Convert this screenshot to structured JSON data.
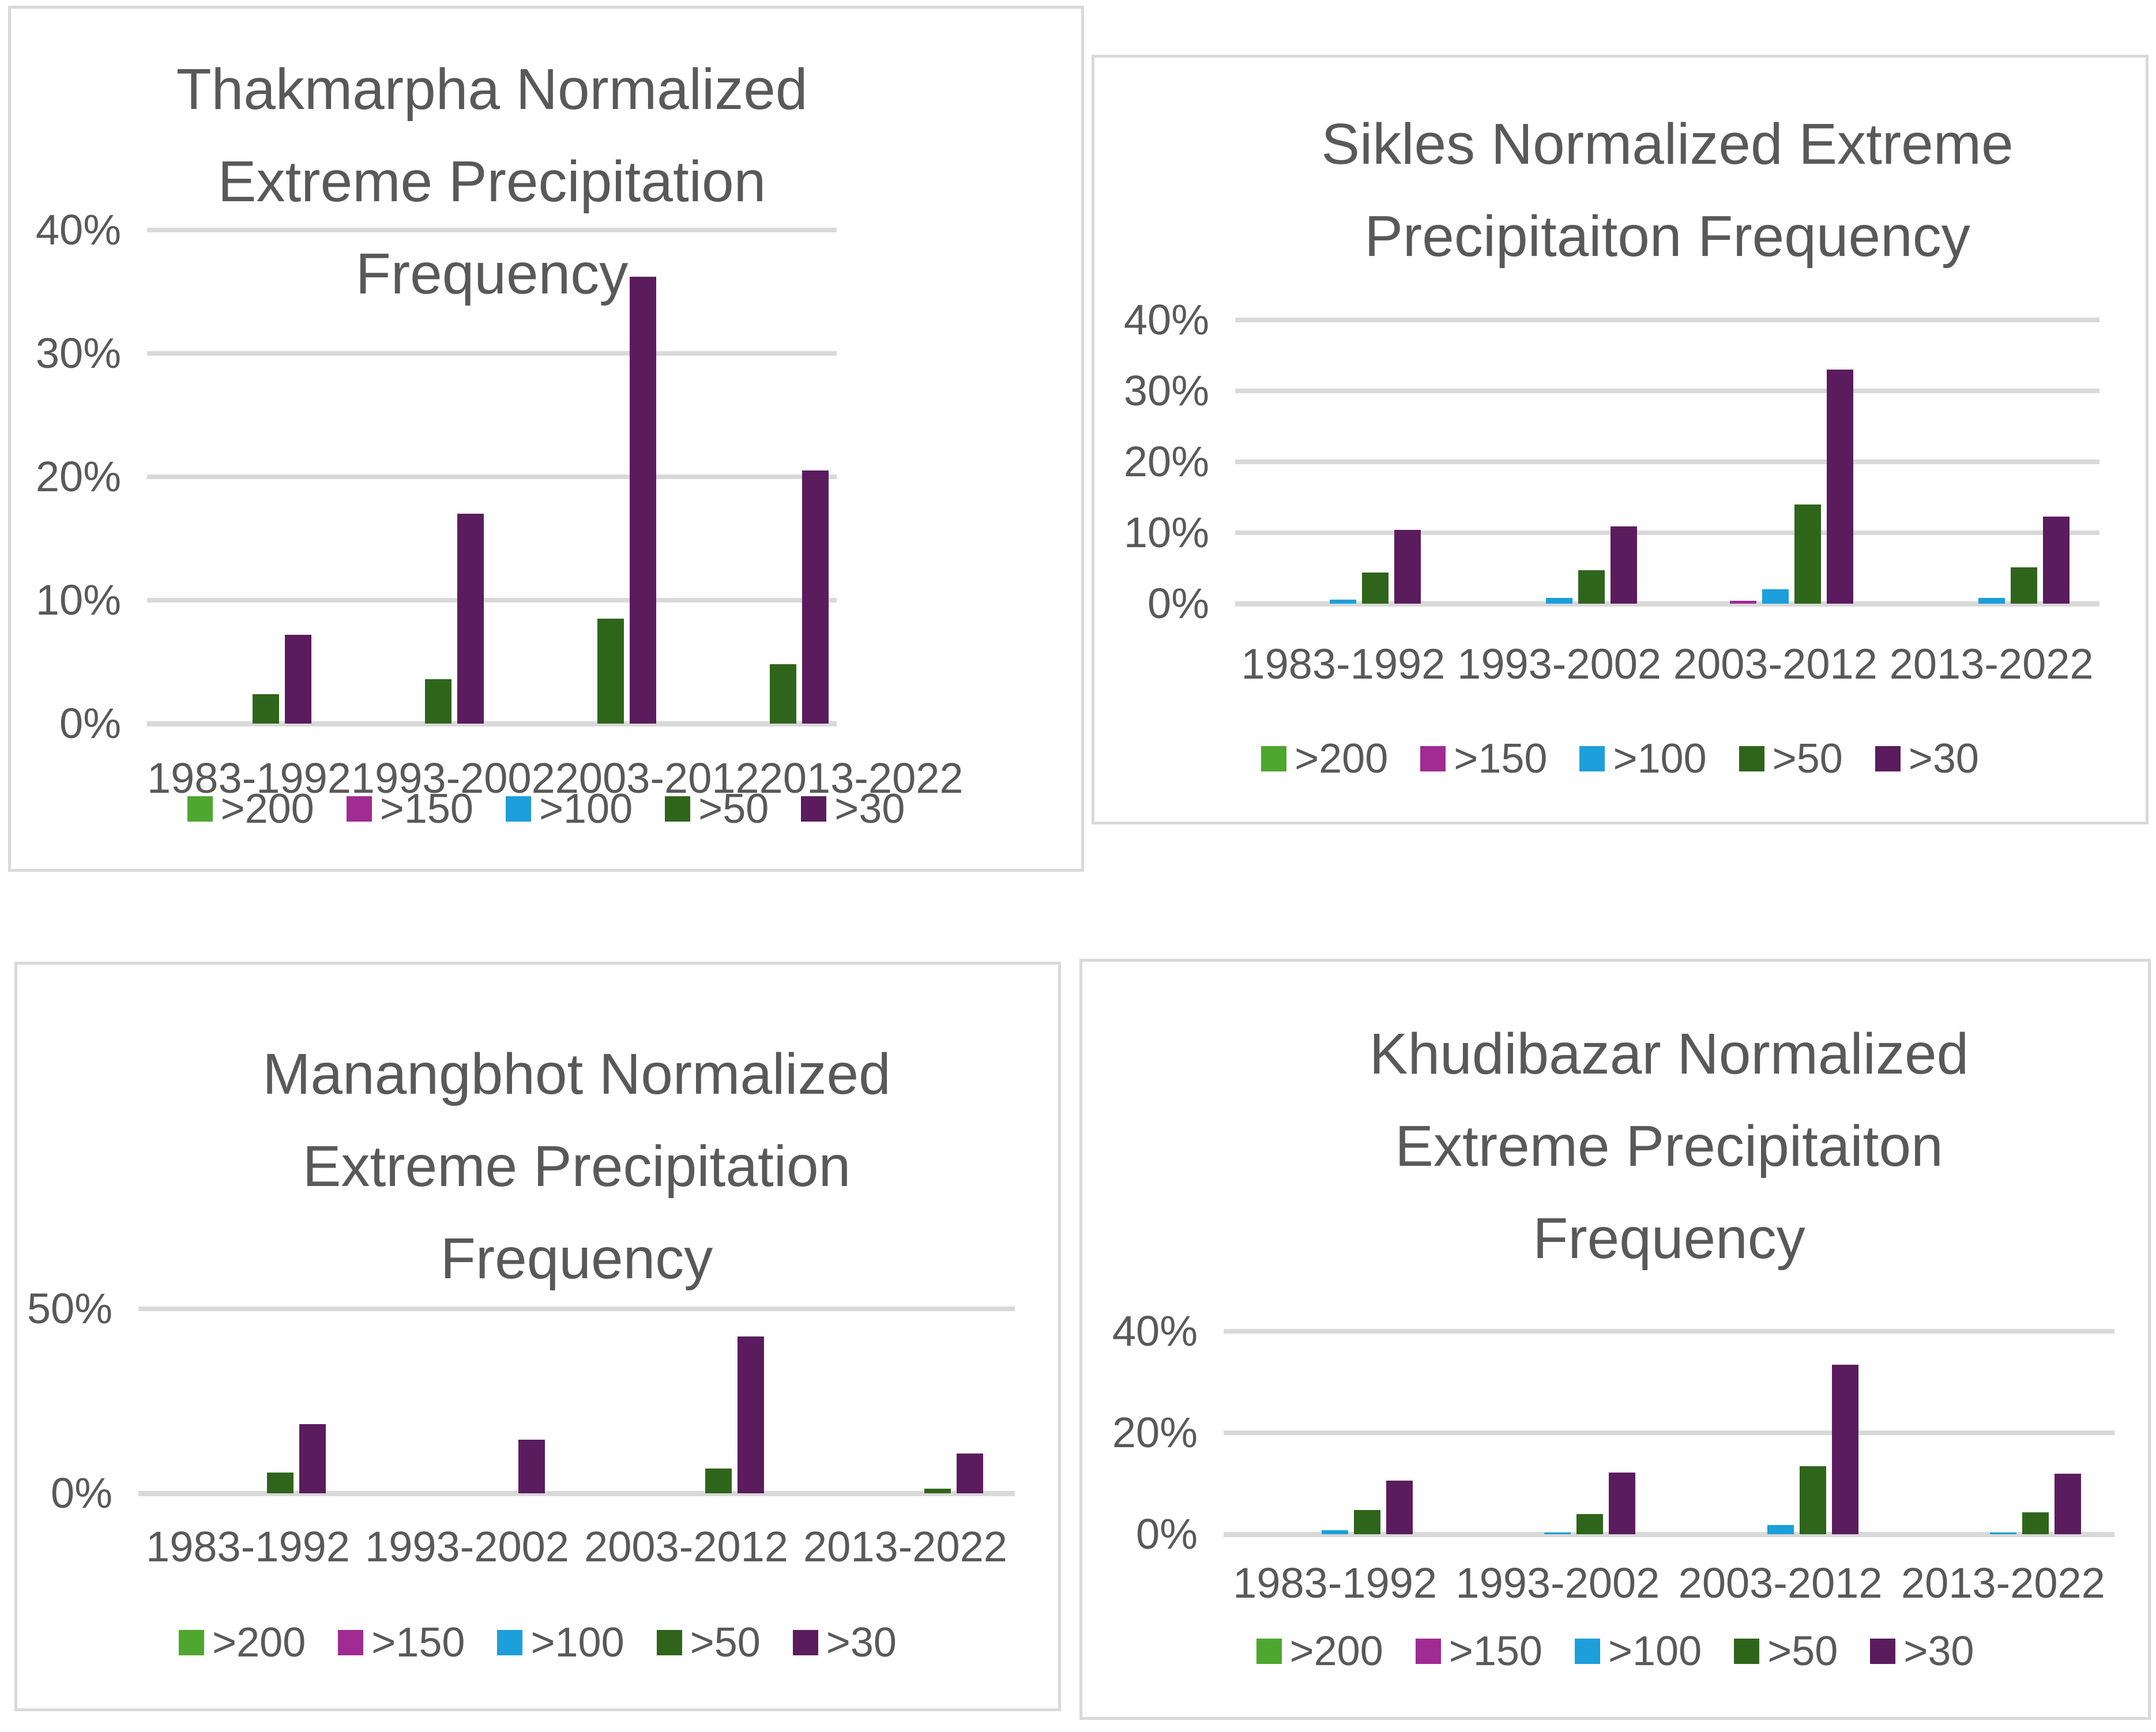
{
  "page": {
    "background": "#FFFFFF",
    "panel_border_color": "#D9D9D9",
    "gridline_color": "#D9D9D9",
    "text_color": "#595959"
  },
  "categories": [
    "1983-1992",
    "1993-2002",
    "2003-2012",
    "2013-2022"
  ],
  "legend": {
    "position": "bottom",
    "items": [
      {
        "label": ">200",
        "color": "#4EA72E"
      },
      {
        "label": ">150",
        "color": "#A02B93"
      },
      {
        "label": ">100",
        "color": "#1C9FDA"
      },
      {
        "label": ">50",
        "color": "#2F651B"
      },
      {
        "label": ">30",
        "color": "#5B1C5D"
      }
    ]
  },
  "chart_data": [
    {
      "type": "bar",
      "title": "Thakmarpha Normalized Extreme Precipitation Frequency",
      "title_lines": [
        "Thakmarpha Normalized",
        "Extreme Precipitation",
        "Frequency"
      ],
      "xlabel": "",
      "ylabel": "",
      "categories": [
        "1983-1992",
        "1993-2002",
        "2003-2012",
        "2013-2022"
      ],
      "ylim": [
        0,
        40
      ],
      "yticks": [
        0,
        10,
        20,
        30,
        40
      ],
      "ytick_format": "percent",
      "grid": true,
      "legend_position": "bottom",
      "series": [
        {
          "name": ">200",
          "values": [
            0,
            0,
            0,
            0
          ]
        },
        {
          "name": ">150",
          "values": [
            0,
            0,
            0,
            0
          ]
        },
        {
          "name": ">100",
          "values": [
            0,
            0,
            0,
            0
          ]
        },
        {
          "name": ">50",
          "values": [
            2.4,
            3.6,
            8.5,
            4.8
          ]
        },
        {
          "name": ">30",
          "values": [
            7.2,
            17,
            36.2,
            20.5
          ]
        }
      ]
    },
    {
      "type": "bar",
      "title": "Sikles Normalized Extreme Precipitaiton Frequency",
      "title_lines": [
        "Sikles Normalized Extreme",
        "Precipitaiton Frequency"
      ],
      "xlabel": "",
      "ylabel": "",
      "categories": [
        "1983-1992",
        "1993-2002",
        "2003-2012",
        "2013-2022"
      ],
      "ylim": [
        0,
        40
      ],
      "yticks": [
        0,
        10,
        20,
        30,
        40
      ],
      "ytick_format": "percent",
      "grid": true,
      "legend_position": "bottom",
      "series": [
        {
          "name": ">200",
          "values": [
            0,
            0,
            0,
            0
          ]
        },
        {
          "name": ">150",
          "values": [
            0,
            0,
            0.4,
            0
          ]
        },
        {
          "name": ">100",
          "values": [
            0.6,
            0.8,
            2,
            0.8
          ]
        },
        {
          "name": ">50",
          "values": [
            4.4,
            4.7,
            14,
            5.1
          ]
        },
        {
          "name": ">30",
          "values": [
            10.4,
            10.9,
            33,
            12.3
          ]
        }
      ]
    },
    {
      "type": "bar",
      "title": "Manangbhot Normalized Extreme Precipitation Frequency",
      "title_lines": [
        "Manangbhot Normalized",
        "Extreme Precipitation",
        "Frequency"
      ],
      "xlabel": "",
      "ylabel": "",
      "categories": [
        "1983-1992",
        "1993-2002",
        "2003-2012",
        "2013-2022"
      ],
      "ylim": [
        0,
        50
      ],
      "yticks": [
        0,
        50
      ],
      "ytick_format": "percent",
      "grid": true,
      "legend_position": "bottom",
      "series": [
        {
          "name": ">200",
          "values": [
            0,
            0,
            0,
            0
          ]
        },
        {
          "name": ">150",
          "values": [
            0,
            0,
            0,
            0
          ]
        },
        {
          "name": ">100",
          "values": [
            0,
            0,
            0,
            0
          ]
        },
        {
          "name": ">50",
          "values": [
            5.6,
            0,
            6.7,
            1.2
          ]
        },
        {
          "name": ">30",
          "values": [
            18.7,
            14.6,
            42.5,
            10.8
          ]
        }
      ]
    },
    {
      "type": "bar",
      "title": "Khudibazar Normalized Extreme Precipitaiton Frequency",
      "title_lines": [
        "Khudibazar Normalized",
        "Extreme Precipitaiton",
        "Frequency"
      ],
      "xlabel": "",
      "ylabel": "",
      "categories": [
        "1983-1992",
        "1993-2002",
        "2003-2012",
        "2013-2022"
      ],
      "ylim": [
        0,
        40
      ],
      "yticks": [
        0,
        20,
        40
      ],
      "ytick_format": "percent",
      "grid": true,
      "legend_position": "bottom",
      "series": [
        {
          "name": ">200",
          "values": [
            0,
            0,
            0,
            0
          ]
        },
        {
          "name": ">150",
          "values": [
            0,
            0,
            0,
            0
          ]
        },
        {
          "name": ">100",
          "values": [
            0.8,
            0.3,
            1.8,
            0.3
          ]
        },
        {
          "name": ">50",
          "values": [
            4.8,
            4,
            13.4,
            4.3
          ]
        },
        {
          "name": ">30",
          "values": [
            10.6,
            12.2,
            33.4,
            11.9
          ]
        }
      ]
    }
  ]
}
